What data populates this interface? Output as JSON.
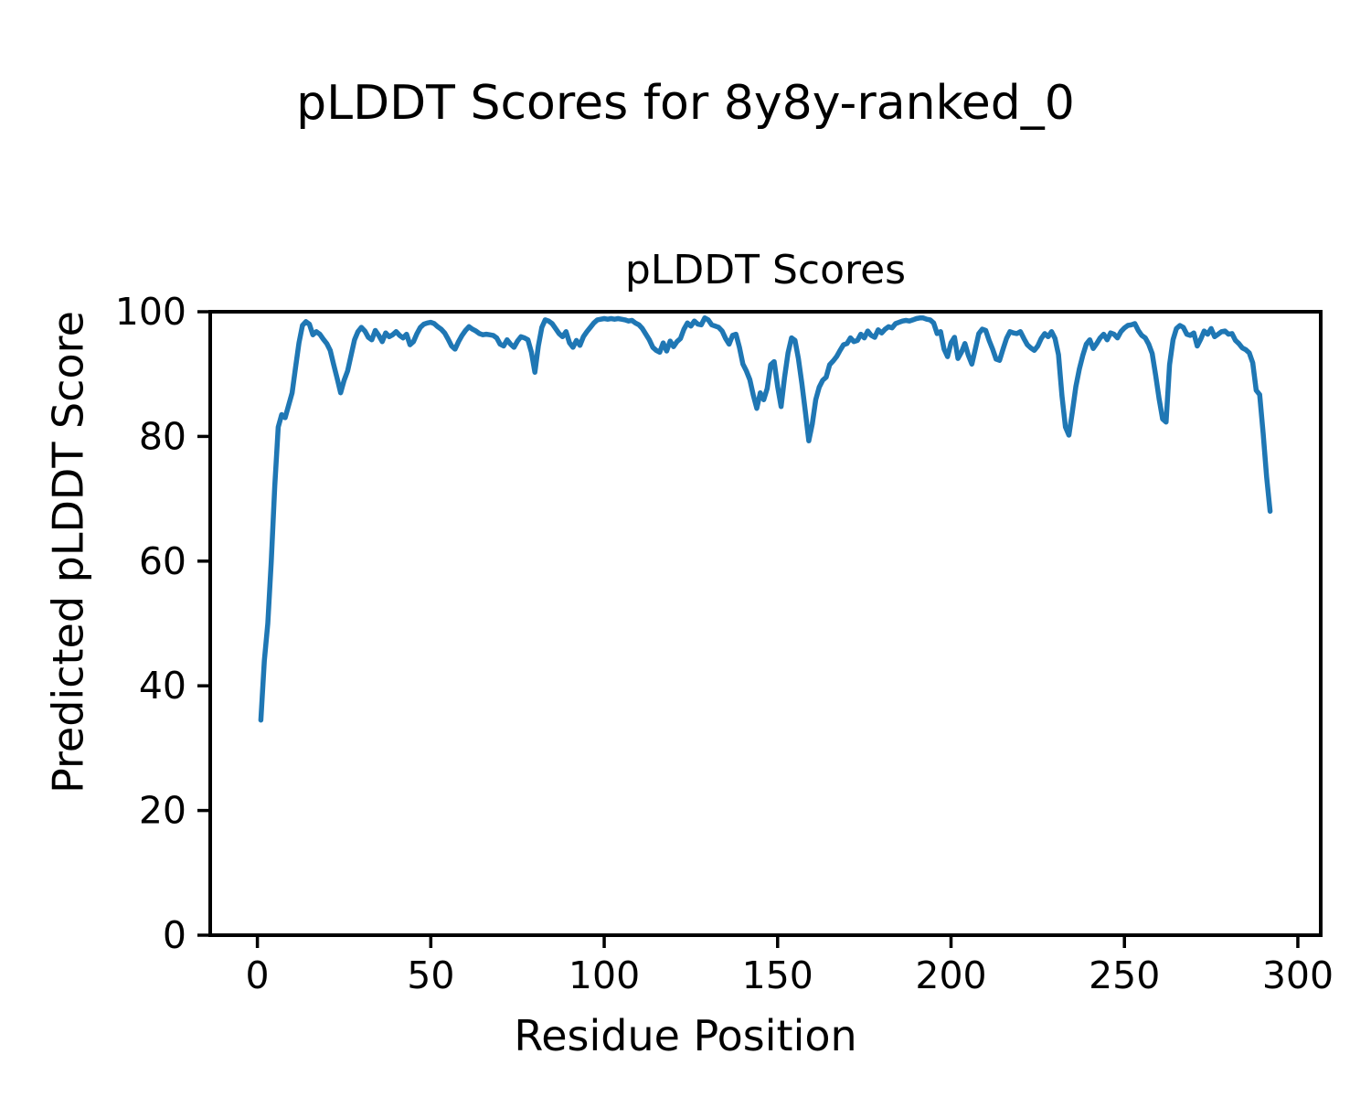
{
  "figure": {
    "suptitle": "pLDDT Scores for 8y8y-ranked_0",
    "axes_title": "pLDDT Scores",
    "xlabel": "Residue Position",
    "ylabel": "Predicted pLDDT Score",
    "background": "#ffffff",
    "text_color": "#000000",
    "spine_color": "#000000"
  },
  "chart_data": {
    "type": "line",
    "title": "pLDDT Scores",
    "suptitle": "pLDDT Scores for 8y8y-ranked_0",
    "xlabel": "Residue Position",
    "ylabel": "Predicted pLDDT Score",
    "xlim": [
      -13.6,
      306.6
    ],
    "ylim": [
      0,
      100
    ],
    "x_ticks": [
      0,
      50,
      100,
      150,
      200,
      250,
      300
    ],
    "y_ticks": [
      0,
      20,
      40,
      60,
      80,
      100
    ],
    "grid": false,
    "legend": "none",
    "series": [
      {
        "name": "pLDDT",
        "color": "#1f77b4",
        "x_start": 1,
        "x_step": 1,
        "y": [
          34.5,
          44.0,
          50.0,
          60.0,
          72.0,
          81.5,
          83.5,
          83.0,
          85.0,
          87.0,
          91.0,
          95.0,
          97.8,
          98.4,
          98.0,
          96.3,
          96.8,
          96.4,
          95.6,
          94.9,
          93.8,
          91.5,
          89.3,
          87.0,
          89.0,
          90.5,
          93.0,
          95.5,
          96.8,
          97.5,
          96.9,
          95.9,
          95.5,
          97.0,
          96.2,
          95.2,
          96.6,
          96.0,
          96.3,
          96.8,
          96.2,
          95.8,
          96.4,
          94.7,
          95.2,
          96.5,
          97.5,
          98.0,
          98.2,
          98.3,
          98.1,
          97.6,
          97.2,
          96.6,
          95.6,
          94.5,
          94.0,
          95.2,
          96.2,
          97.0,
          97.6,
          97.2,
          96.9,
          96.5,
          96.3,
          96.4,
          96.3,
          96.2,
          95.8,
          94.8,
          94.5,
          95.5,
          94.8,
          94.3,
          95.3,
          96.0,
          95.8,
          95.5,
          93.5,
          90.3,
          94.5,
          97.5,
          98.7,
          98.5,
          98.1,
          97.3,
          96.5,
          96.0,
          96.8,
          95.0,
          94.3,
          95.4,
          94.6,
          96.0,
          96.8,
          97.5,
          98.2,
          98.7,
          98.8,
          98.9,
          98.8,
          98.9,
          98.8,
          98.9,
          98.8,
          98.7,
          98.5,
          98.6,
          98.2,
          97.9,
          97.3,
          96.4,
          95.5,
          94.3,
          93.8,
          93.5,
          95.0,
          93.7,
          95.3,
          94.4,
          95.2,
          95.7,
          97.2,
          98.2,
          97.7,
          98.5,
          98.0,
          97.9,
          99.0,
          98.7,
          97.9,
          97.7,
          97.5,
          96.9,
          95.7,
          94.8,
          96.2,
          96.4,
          94.3,
          91.6,
          90.5,
          89.1,
          86.6,
          84.5,
          87.0,
          85.9,
          87.7,
          91.5,
          92.0,
          88.0,
          84.8,
          89.5,
          93.4,
          95.8,
          95.4,
          92.5,
          88.5,
          84.0,
          79.3,
          82.0,
          85.9,
          87.9,
          89.0,
          89.5,
          91.5,
          92.1,
          92.8,
          93.8,
          94.7,
          94.9,
          95.8,
          95.2,
          95.4,
          96.4,
          95.8,
          96.9,
          96.2,
          95.9,
          97.1,
          96.6,
          97.2,
          97.6,
          97.4,
          98.1,
          98.3,
          98.5,
          98.6,
          98.5,
          98.7,
          98.9,
          99.0,
          99.0,
          98.8,
          98.7,
          98.2,
          96.5,
          96.8,
          94.0,
          92.8,
          95.0,
          95.9,
          92.5,
          93.5,
          94.9,
          93.0,
          91.6,
          94.0,
          96.5,
          97.2,
          97.0,
          95.4,
          94.0,
          92.4,
          92.2,
          94.0,
          95.7,
          96.8,
          96.6,
          96.5,
          96.8,
          95.7,
          94.7,
          94.2,
          93.8,
          94.5,
          95.7,
          96.5,
          96.0,
          96.8,
          95.7,
          93.1,
          86.5,
          81.5,
          80.2,
          84.0,
          88.0,
          90.8,
          93.0,
          94.8,
          95.5,
          94.1,
          94.9,
          95.8,
          96.4,
          95.5,
          96.6,
          96.4,
          95.8,
          96.8,
          97.4,
          97.8,
          97.9,
          98.1,
          97.0,
          96.2,
          95.8,
          94.8,
          93.3,
          89.8,
          86.0,
          82.8,
          82.3,
          91.5,
          95.5,
          97.3,
          97.8,
          97.5,
          96.4,
          96.2,
          96.6,
          94.5,
          95.6,
          96.9,
          96.4,
          97.3,
          96.0,
          96.4,
          96.8,
          96.9,
          96.4,
          96.5,
          95.4,
          94.9,
          94.2,
          93.9,
          93.4,
          91.8,
          87.4,
          86.7,
          80.5,
          73.5,
          68.0
        ]
      }
    ]
  }
}
